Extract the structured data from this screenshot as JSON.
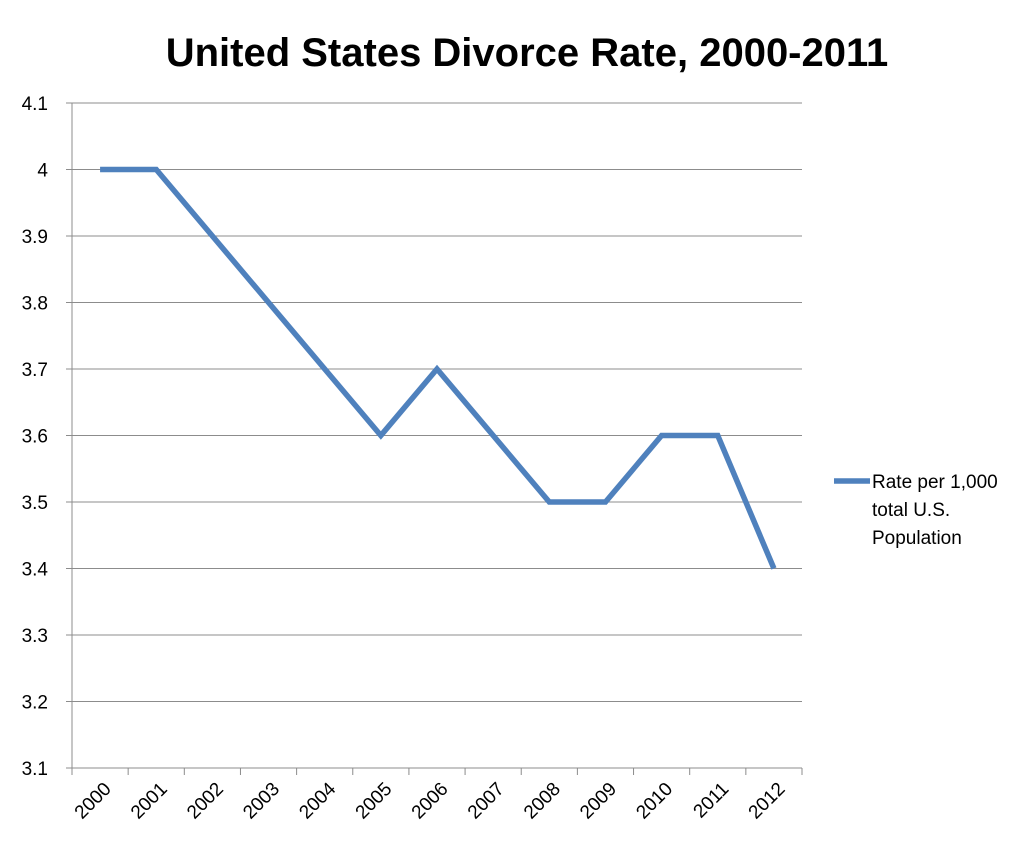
{
  "chart_data": {
    "type": "line",
    "title": "United States Divorce Rate, 2000-2011",
    "xlabel": "",
    "ylabel": "",
    "categories": [
      "2000",
      "2001",
      "2002",
      "2003",
      "2004",
      "2005",
      "2006",
      "2007",
      "2008",
      "2009",
      "2010",
      "2011",
      "2012"
    ],
    "series": [
      {
        "name": "Rate per 1,000 total U.S. Population",
        "name_lines": [
          "Rate per 1,000",
          "total U.S.",
          "Population"
        ],
        "values": [
          4.0,
          4.0,
          null,
          null,
          null,
          3.6,
          3.7,
          null,
          3.5,
          3.5,
          3.6,
          3.6,
          3.4
        ],
        "color": "#4f81bd"
      }
    ],
    "ylim": [
      3.1,
      4.1
    ],
    "yticks": [
      "3.1",
      "3.2",
      "3.3",
      "3.4",
      "3.5",
      "3.6",
      "3.7",
      "3.8",
      "3.9",
      "4",
      "4.1"
    ],
    "grid": true,
    "legend_position": "right"
  }
}
